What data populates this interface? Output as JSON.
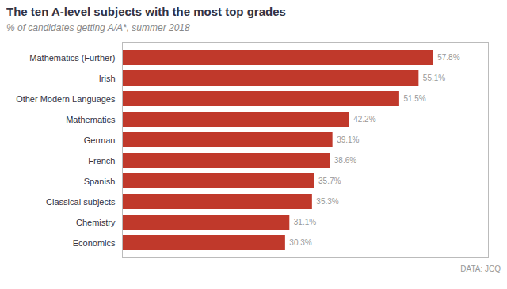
{
  "chart_data": {
    "type": "bar",
    "orientation": "horizontal",
    "title": "The ten A-level subjects with the most top grades",
    "subtitle": "% of candidates getting A/A*, summer 2018",
    "source": "DATA: JCQ",
    "categories": [
      "Economics",
      "Chemistry",
      "Classical subjects",
      "Spanish",
      "French",
      "German",
      "Mathematics",
      "Other Modern Languages",
      "Irish",
      "Mathematics (Further)"
    ],
    "values": [
      30.3,
      31.1,
      35.3,
      35.7,
      38.6,
      39.1,
      42.2,
      51.5,
      55.1,
      57.8
    ],
    "value_labels": [
      "30.3%",
      "31.1%",
      "35.3%",
      "35.7%",
      "38.6%",
      "39.1%",
      "42.2%",
      "51.5%",
      "55.1%",
      "57.8%"
    ],
    "data_labels": true,
    "color": "#c0392b",
    "xlim": [
      0,
      68
    ],
    "grid": false,
    "tick_labels": "y"
  }
}
